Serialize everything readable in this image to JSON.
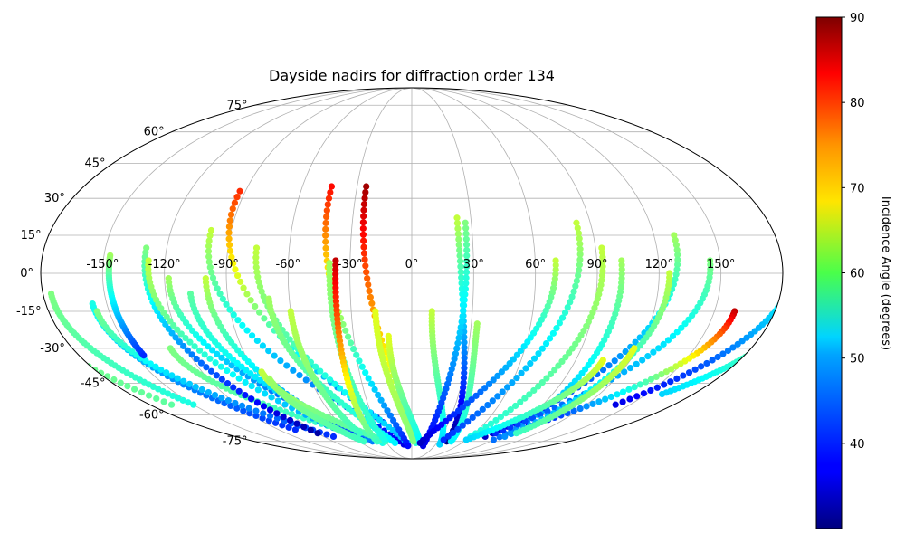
{
  "chart_data": {
    "type": "scatter",
    "projection": "mollweide",
    "title": "Dayside nadirs for diffraction order 134",
    "longitude_ticks": [
      "-150°",
      "-120°",
      "-90°",
      "-60°",
      "-30°",
      "0°",
      "30°",
      "60°",
      "90°",
      "120°",
      "150°"
    ],
    "latitude_ticks": [
      "75°",
      "60°",
      "45°",
      "30°",
      "15°",
      "0°",
      "-15°",
      "-30°",
      "-45°",
      "-60°",
      "-75°"
    ],
    "grid": true,
    "colorbar": {
      "label": "Incidence Angle (degrees)",
      "colormap": "jet",
      "range": [
        30,
        90
      ],
      "ticks": [
        "40",
        "50",
        "60",
        "70",
        "80",
        "90"
      ]
    },
    "tracks": [
      {
        "lon": [
          -200,
          -165
        ],
        "lat": [
          10,
          -55
        ],
        "angle": [
          62,
          58
        ]
      },
      {
        "lon": [
          -176,
          -150
        ],
        "lat": [
          -8,
          -55
        ],
        "angle": [
          60,
          54
        ]
      },
      {
        "lon": [
          -157,
          -105
        ],
        "lat": [
          -12,
          -68
        ],
        "angle": [
          54,
          40
        ]
      },
      {
        "lon": [
          -156,
          -80
        ],
        "lat": [
          -15,
          -72
        ],
        "angle": [
          60,
          40
        ]
      },
      {
        "lon": [
          -128,
          -35
        ],
        "lat": [
          -30,
          -76
        ],
        "angle": [
          60,
          54
        ]
      },
      {
        "lon": [
          -147,
          -145
        ],
        "lat": [
          7,
          -33
        ],
        "angle": [
          62,
          40
        ]
      },
      {
        "lon": [
          -130,
          -90
        ],
        "lat": [
          10,
          -70
        ],
        "angle": [
          60,
          32
        ]
      },
      {
        "lon": [
          -128,
          -60
        ],
        "lat": [
          5,
          -72
        ],
        "angle": [
          64,
          45
        ]
      },
      {
        "lon": [
          -118,
          -45
        ],
        "lat": [
          -2,
          -74
        ],
        "angle": [
          62,
          35
        ]
      },
      {
        "lon": [
          -108,
          -45
        ],
        "lat": [
          -8,
          -75
        ],
        "angle": [
          58,
          45
        ]
      },
      {
        "lon": [
          -100,
          -10
        ],
        "lat": [
          17,
          -77
        ],
        "angle": [
          64,
          36
        ]
      },
      {
        "lon": [
          -100,
          -55
        ],
        "lat": [
          -2,
          -74
        ],
        "angle": [
          64,
          40
        ]
      },
      {
        "lon": [
          -86,
          -30
        ],
        "lat": [
          -40,
          -75
        ],
        "angle": [
          64,
          56
        ]
      },
      {
        "lon": [
          -84,
          -55
        ],
        "lat": [
          -43,
          -75
        ],
        "angle": [
          62,
          56
        ]
      },
      {
        "lon": [
          -93,
          -5
        ],
        "lat": [
          33,
          -76
        ],
        "angle": [
          80,
          34
        ]
      },
      {
        "lon": [
          -76,
          -5
        ],
        "lat": [
          10,
          -76
        ],
        "angle": [
          64,
          48
        ]
      },
      {
        "lon": [
          -70,
          -20
        ],
        "lat": [
          -10,
          -76
        ],
        "angle": [
          62,
          52
        ]
      },
      {
        "lon": [
          -60,
          -50
        ],
        "lat": [
          -15,
          -70
        ],
        "angle": [
          64,
          56
        ]
      },
      {
        "lon": [
          -44,
          -5
        ],
        "lat": [
          35,
          -78
        ],
        "angle": [
          82,
          38
        ]
      },
      {
        "lon": [
          -40,
          -30
        ],
        "lat": [
          4,
          -74
        ],
        "angle": [
          62,
          54
        ]
      },
      {
        "lon": [
          -37,
          -40
        ],
        "lat": [
          5,
          -75
        ],
        "angle": [
          86,
          56
        ]
      },
      {
        "lon": [
          -25,
          5
        ],
        "lat": [
          35,
          -76
        ],
        "angle": [
          88,
          55
        ]
      },
      {
        "lon": [
          -18,
          2
        ],
        "lat": [
          -15,
          -75
        ],
        "angle": [
          66,
          60
        ]
      },
      {
        "lon": [
          -12,
          10
        ],
        "lat": [
          -25,
          -76
        ],
        "angle": [
          66,
          52
        ]
      },
      {
        "lon": [
          10,
          35
        ],
        "lat": [
          -15,
          -77
        ],
        "angle": [
          64,
          50
        ]
      },
      {
        "lon": [
          23,
          40
        ],
        "lat": [
          22,
          -75
        ],
        "angle": [
          64,
          30
        ]
      },
      {
        "lon": [
          27,
          15
        ],
        "lat": [
          20,
          -78
        ],
        "angle": [
          60,
          36
        ]
      },
      {
        "lon": [
          33,
          45
        ],
        "lat": [
          -20,
          -75
        ],
        "angle": [
          62,
          52
        ]
      },
      {
        "lon": [
          70,
          10
        ],
        "lat": [
          5,
          -76
        ],
        "angle": [
          64,
          34
        ]
      },
      {
        "lon": [
          83,
          35
        ],
        "lat": [
          20,
          -74
        ],
        "angle": [
          64,
          40
        ]
      },
      {
        "lon": [
          93,
          60
        ],
        "lat": [
          10,
          -72
        ],
        "angle": [
          64,
          54
        ]
      },
      {
        "lon": [
          102,
          90
        ],
        "lat": [
          5,
          -74
        ],
        "angle": [
          62,
          44
        ]
      },
      {
        "lon": [
          130,
          75
        ],
        "lat": [
          15,
          -72
        ],
        "angle": [
          62,
          34
        ]
      },
      {
        "lon": [
          145,
          80
        ],
        "lat": [
          5,
          -70
        ],
        "angle": [
          60,
          40
        ]
      },
      {
        "lon": [
          160,
          100
        ],
        "lat": [
          -15,
          -66
        ],
        "angle": [
          86,
          36
        ]
      },
      {
        "lon": [
          185,
          140
        ],
        "lat": [
          5,
          -55
        ],
        "angle": [
          58,
          36
        ]
      },
      {
        "lon": [
          188,
          160
        ],
        "lat": [
          -18,
          -50
        ],
        "angle": [
          62,
          50
        ]
      },
      {
        "lon": [
          125,
          95
        ],
        "lat": [
          0,
          -72
        ],
        "angle": [
          64,
          46
        ]
      },
      {
        "lon": [
          118,
          100
        ],
        "lat": [
          -30,
          -70
        ],
        "angle": [
          66,
          56
        ]
      },
      {
        "lon": [
          105,
          60
        ],
        "lat": [
          -35,
          -74
        ],
        "angle": [
          66,
          50
        ]
      }
    ]
  }
}
